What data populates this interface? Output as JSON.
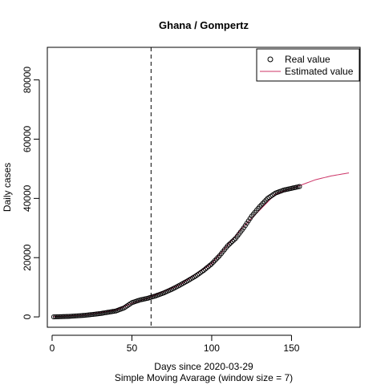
{
  "chart_data": {
    "type": "line",
    "title": "Ghana / Gompertz",
    "xlabel": "Days since 2020-03-29",
    "subtitle": "Simple Moving Avarage (window size = 7)",
    "ylabel": "Daily cases",
    "xlim": [
      -3,
      193
    ],
    "ylim": [
      -3500,
      91000
    ],
    "x_ticks": [
      0,
      50,
      100,
      150
    ],
    "y_ticks": [
      0,
      20000,
      40000,
      60000,
      80000
    ],
    "x_tick_labels": [
      "0",
      "50",
      "100",
      "150"
    ],
    "y_tick_labels": [
      "0",
      "20000",
      "40000",
      "60000",
      "80000"
    ],
    "vline_x": 62,
    "legend": {
      "position": "top-right",
      "real": "Real value",
      "estimated": "Estimated value"
    },
    "colors": {
      "real": "#000000",
      "estimated": "#cc3366",
      "vline": "#000000"
    },
    "real_anchors": [
      [
        1,
        0
      ],
      [
        10,
        150
      ],
      [
        20,
        500
      ],
      [
        30,
        1100
      ],
      [
        40,
        2000
      ],
      [
        45,
        3000
      ],
      [
        50,
        4800
      ],
      [
        55,
        5700
      ],
      [
        60,
        6300
      ],
      [
        65,
        7100
      ],
      [
        70,
        8100
      ],
      [
        75,
        9300
      ],
      [
        80,
        10700
      ],
      [
        85,
        12200
      ],
      [
        90,
        13800
      ],
      [
        95,
        15700
      ],
      [
        100,
        17900
      ],
      [
        105,
        20700
      ],
      [
        110,
        24000
      ],
      [
        115,
        26500
      ],
      [
        120,
        30000
      ],
      [
        125,
        34000
      ],
      [
        130,
        37200
      ],
      [
        135,
        40000
      ],
      [
        140,
        41800
      ],
      [
        145,
        42800
      ],
      [
        150,
        43400
      ],
      [
        155,
        44000
      ]
    ],
    "real_x_range": [
      1,
      155
    ],
    "estimated_anchors": [
      [
        1,
        100
      ],
      [
        20,
        600
      ],
      [
        40,
        2300
      ],
      [
        50,
        4600
      ],
      [
        60,
        6400
      ],
      [
        80,
        10800
      ],
      [
        100,
        18000
      ],
      [
        120,
        30500
      ],
      [
        140,
        41500
      ],
      [
        155,
        44300
      ],
      [
        165,
        46300
      ],
      [
        175,
        47600
      ],
      [
        186,
        48600
      ]
    ],
    "estimated_x_range": [
      1,
      186
    ]
  }
}
